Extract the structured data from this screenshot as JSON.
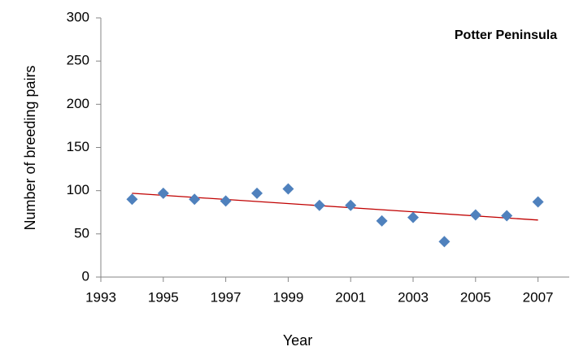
{
  "chart_data": {
    "type": "scatter",
    "title": "Potter Peninsula",
    "x_label": "Year",
    "y_label": "Number of breeding pairs",
    "x": [
      1994,
      1995,
      1996,
      1997,
      1998,
      1999,
      2000,
      2001,
      2002,
      2003,
      2004,
      2005,
      2006,
      2007
    ],
    "values": [
      90,
      97,
      90,
      88,
      97,
      102,
      83,
      83,
      65,
      69,
      41,
      72,
      71,
      87
    ],
    "color": "#4f81bd",
    "trendline": {
      "x": [
        1994,
        2007
      ],
      "values": [
        97,
        66
      ],
      "color": "#c00000"
    },
    "xlim": [
      1993,
      2008
    ],
    "xticks": [
      1993,
      1995,
      1997,
      1999,
      2001,
      2003,
      2005,
      2007
    ],
    "ylim": [
      0,
      300
    ],
    "yticks": [
      0,
      50,
      100,
      150,
      200,
      250,
      300
    ],
    "grid": false
  }
}
